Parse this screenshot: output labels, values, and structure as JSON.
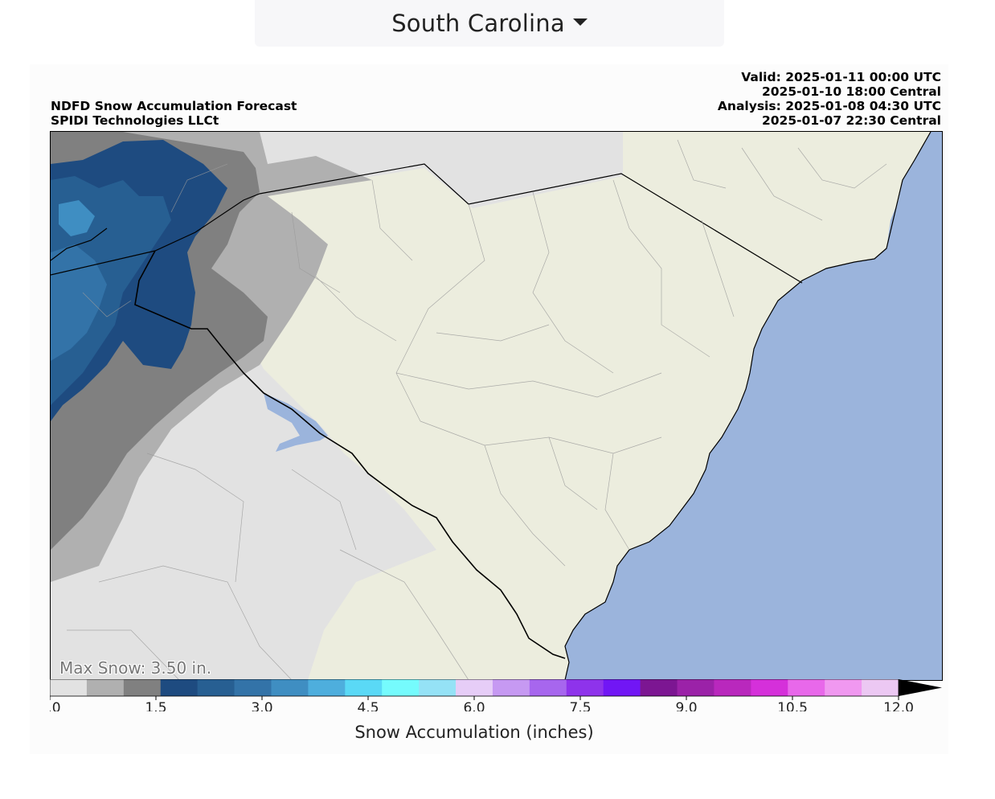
{
  "region_selector": {
    "selected": "South Carolina"
  },
  "header": {
    "title_line1": "NDFD Snow Accumulation Forecast",
    "title_line2": "SPIDI Technologies LLCt",
    "valid_utc": "Valid: 2025-01-11 00:00 UTC",
    "valid_central": "2025-01-10 18:00 Central",
    "analysis_utc": "Analysis: 2025-01-08 04:30 UTC",
    "analysis_central": "2025-01-07 22:30 Central"
  },
  "map": {
    "max_snow_text": "Max Snow: 3.50 in.",
    "colors": {
      "land": "#ecedde",
      "ocean": "#9bb4dc",
      "lake": "#9bb4dc",
      "border": "#000000"
    }
  },
  "colorbar": {
    "label": "Snow Accumulation (inches)",
    "min": 0,
    "max": 12,
    "step": 0.5,
    "extend": "max",
    "colors": [
      "#e2e2e2",
      "#b0b0b0",
      "#808080",
      "#1e4b80",
      "#275f92",
      "#3373a8",
      "#3f8ec2",
      "#4eaedd",
      "#5ad9f6",
      "#75fbfd",
      "#95e2f6",
      "#e6cdf7",
      "#c699f2",
      "#a766ee",
      "#8e33eb",
      "#7116f5",
      "#7c1692",
      "#9b22a8",
      "#b928bd",
      "#d530da",
      "#e868ea",
      "#f098f0",
      "#ecc8f3"
    ],
    "extend_color": "#000000",
    "ticks": [
      "0.0",
      "1.5",
      "3.0",
      "4.5",
      "6.0",
      "7.5",
      "9.0",
      "10.5",
      "12.0"
    ]
  }
}
